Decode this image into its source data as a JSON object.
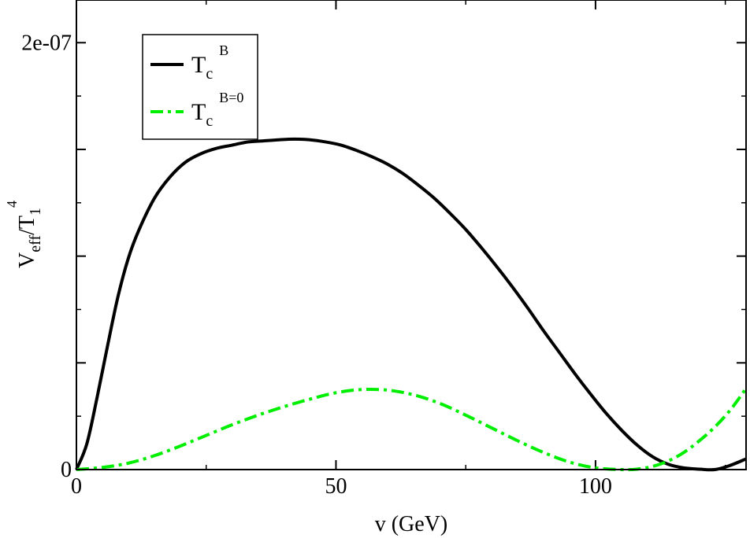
{
  "chart_data": {
    "type": "line",
    "title": "",
    "xlabel": "v (GeV)",
    "ylabel": {
      "base": "V",
      "sub": "eff",
      "slash": "/T",
      "sub2": "1",
      "sup": "4"
    },
    "xlim": [
      0,
      129
    ],
    "ylim": [
      0,
      2.2e-07
    ],
    "x_ticks": [
      0,
      50,
      100
    ],
    "x_tick_labels": [
      "0",
      "50",
      "100"
    ],
    "y_ticks": [
      0,
      2e-07
    ],
    "y_tick_labels": [
      "0",
      "2e-07"
    ],
    "grid": false,
    "legend_position": "top-left",
    "series": [
      {
        "name": "T_c^B",
        "label_base": "T",
        "label_sub": "c",
        "label_sup": "B",
        "color": "#000000",
        "style": "solid",
        "x": [
          0,
          2,
          4,
          6,
          8,
          10,
          12,
          15,
          18,
          21,
          24,
          27,
          30,
          33,
          36,
          39,
          42,
          45,
          48,
          51,
          54,
          57,
          60,
          63,
          66,
          69,
          72,
          75,
          78,
          81,
          84,
          87,
          90,
          93,
          96,
          99,
          102,
          105,
          108,
          111,
          114,
          117,
          120,
          123,
          126,
          129
        ],
        "y": [
          0,
          1.2e-08,
          3.4e-08,
          5.8e-08,
          8.1e-08,
          9.9e-08,
          1.12e-07,
          1.27e-07,
          1.37e-07,
          1.44e-07,
          1.48e-07,
          1.505e-07,
          1.52e-07,
          1.535e-07,
          1.54e-07,
          1.545e-07,
          1.548e-07,
          1.545e-07,
          1.535e-07,
          1.52e-07,
          1.495e-07,
          1.465e-07,
          1.43e-07,
          1.385e-07,
          1.33e-07,
          1.27e-07,
          1.2e-07,
          1.125e-07,
          1.04e-07,
          9.5e-08,
          8.55e-08,
          7.55e-08,
          6.5e-08,
          5.5e-08,
          4.5e-08,
          3.55e-08,
          2.65e-08,
          1.85e-08,
          1.15e-08,
          6e-09,
          2.5e-09,
          8e-10,
          2e-10,
          0,
          2e-09,
          5e-09
        ]
      },
      {
        "name": "T_c^{B=0}",
        "label_base": "T",
        "label_sub": "c",
        "label_sup": "B=0",
        "color": "#00ee00",
        "style": "dashdot",
        "x": [
          0,
          5,
          10,
          15,
          20,
          25,
          30,
          35,
          40,
          45,
          50,
          55,
          60,
          65,
          70,
          75,
          80,
          85,
          90,
          95,
          100,
          105,
          108,
          111,
          114,
          117,
          120,
          123,
          126,
          129
        ],
        "y": [
          0,
          1e-09,
          3e-09,
          6.5e-09,
          1.1e-08,
          1.6e-08,
          2.1e-08,
          2.55e-08,
          2.95e-08,
          3.3e-08,
          3.6e-08,
          3.75e-08,
          3.72e-08,
          3.5e-08,
          3.1e-08,
          2.55e-08,
          1.95e-08,
          1.35e-08,
          8e-09,
          3.5e-09,
          8e-10,
          0,
          2e-10,
          1.5e-09,
          4e-09,
          8e-09,
          1.35e-08,
          2e-08,
          2.8e-08,
          3.8e-08
        ]
      }
    ]
  }
}
